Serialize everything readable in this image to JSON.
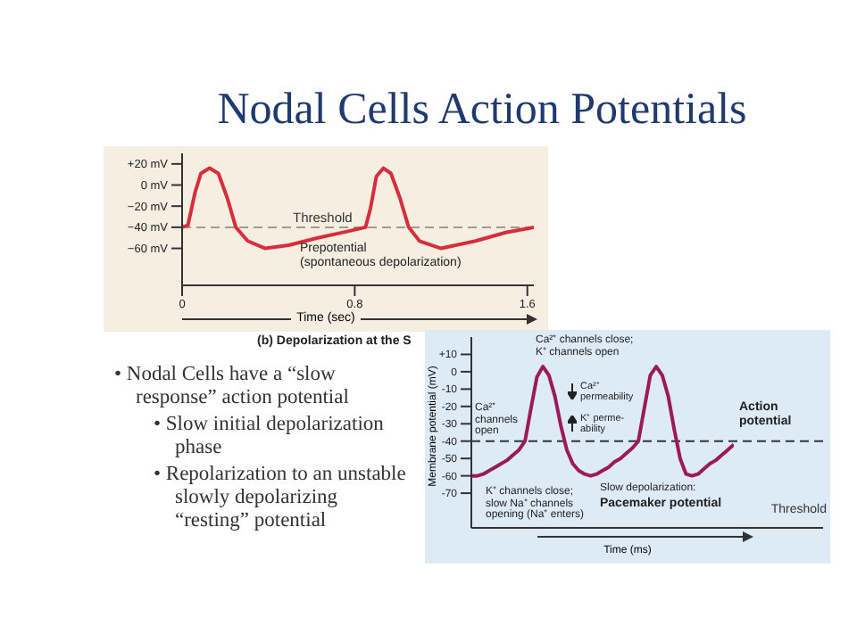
{
  "chart_data": [
    {
      "type": "line",
      "title": "Nodal Cells Action Potentials",
      "xlabel": "Time (sec)",
      "x": [
        0,
        0.027,
        0.06,
        0.087,
        0.127,
        0.168,
        0.209,
        0.249,
        0.304,
        0.385,
        0.494,
        0.629,
        0.765,
        0.85,
        0.873,
        0.9,
        0.933,
        0.968,
        1.009,
        1.05,
        1.1,
        1.2,
        1.36,
        1.5,
        1.63
      ],
      "series": [
        {
          "color": "#d62e3c",
          "values": [
            -40,
            -38,
            -7,
            11,
            16,
            11,
            -12,
            -40,
            -53,
            -60,
            -57,
            -50,
            -44,
            -40,
            -22,
            8,
            16,
            11,
            -12,
            -40,
            -53,
            -60,
            -53,
            -45,
            -40
          ]
        }
      ],
      "xlim": [
        0,
        1.63
      ],
      "xticks": [
        0,
        0.8,
        1.6
      ],
      "ylim": [
        -95,
        30
      ],
      "yticks": [
        {
          "value": 20,
          "label": "+20 mV"
        },
        {
          "value": 0,
          "label": "0 mV"
        },
        {
          "value": -20,
          "label": "−20 mV"
        },
        {
          "value": -40,
          "label": "−40 mV"
        },
        {
          "value": -60,
          "label": "−60 mV"
        }
      ],
      "ref_lines": [
        {
          "axis": "y",
          "value": -40,
          "label": "Threshold",
          "color": "#a09a90",
          "line_style": "dashed"
        }
      ],
      "annotations": [
        "Prepotential\n(spontaneous depolarization)",
        "(b) Depolarization at the S"
      ]
    },
    {
      "type": "other",
      "annotations": [
        "• Nodal Cells have a “slow response” action potential",
        "• Slow initial depolarization phase",
        "• Repolarization to an unstable slowly depolarizing “resting” potential"
      ]
    },
    {
      "type": "line",
      "xlabel": "Time (ms)",
      "ylabel": "Membrane potential (mV)",
      "categories": [
        null,
        null,
        null,
        null,
        null,
        null,
        null,
        null,
        null,
        null,
        null,
        null,
        null,
        null,
        null,
        null,
        null,
        null,
        null,
        null,
        null,
        null,
        null,
        null,
        null,
        null,
        null,
        null,
        null,
        null,
        null,
        null,
        null,
        null,
        null,
        null,
        null,
        null,
        null,
        null,
        null,
        null,
        null,
        null,
        null
      ],
      "series": [
        {
          "color": "#9b1b5a",
          "values": [
            -60,
            -60,
            -59,
            -57,
            -55,
            -53,
            -51,
            -48,
            -45,
            -40,
            -21,
            -3,
            3,
            -2,
            -14,
            -31,
            -45,
            -53,
            -57,
            -59,
            -60,
            -59,
            -57,
            -55,
            -52,
            -50,
            -47,
            -44,
            -40,
            -21,
            -2,
            3,
            -2,
            -14,
            -33,
            -50,
            -59,
            -60,
            -59,
            -56,
            -53,
            -51,
            -48,
            -45,
            -42
          ]
        }
      ],
      "ylim": [
        -90,
        20
      ],
      "yticks": [
        {
          "value": 10,
          "label": "+10"
        },
        0,
        -10,
        -20,
        -30,
        -40,
        -50,
        -60,
        -70
      ],
      "ref_lines": [
        {
          "axis": "y",
          "value": -40,
          "label": "Threshold",
          "color": "#333333",
          "line_style": "dashed"
        }
      ],
      "annotations": [
        "Ca²⁺ channels close;\nK⁺ channels open",
        "Ca²⁺\npermeability",
        "K⁺ perme-\nability",
        "Ca²⁺\nchannels\nopen",
        "Action\npotential",
        "Slow depolarization:",
        "Pacemaker potential",
        "K⁺ channels close;\nslow Na⁺ channels\nopening (Na⁺ enters)"
      ]
    }
  ]
}
